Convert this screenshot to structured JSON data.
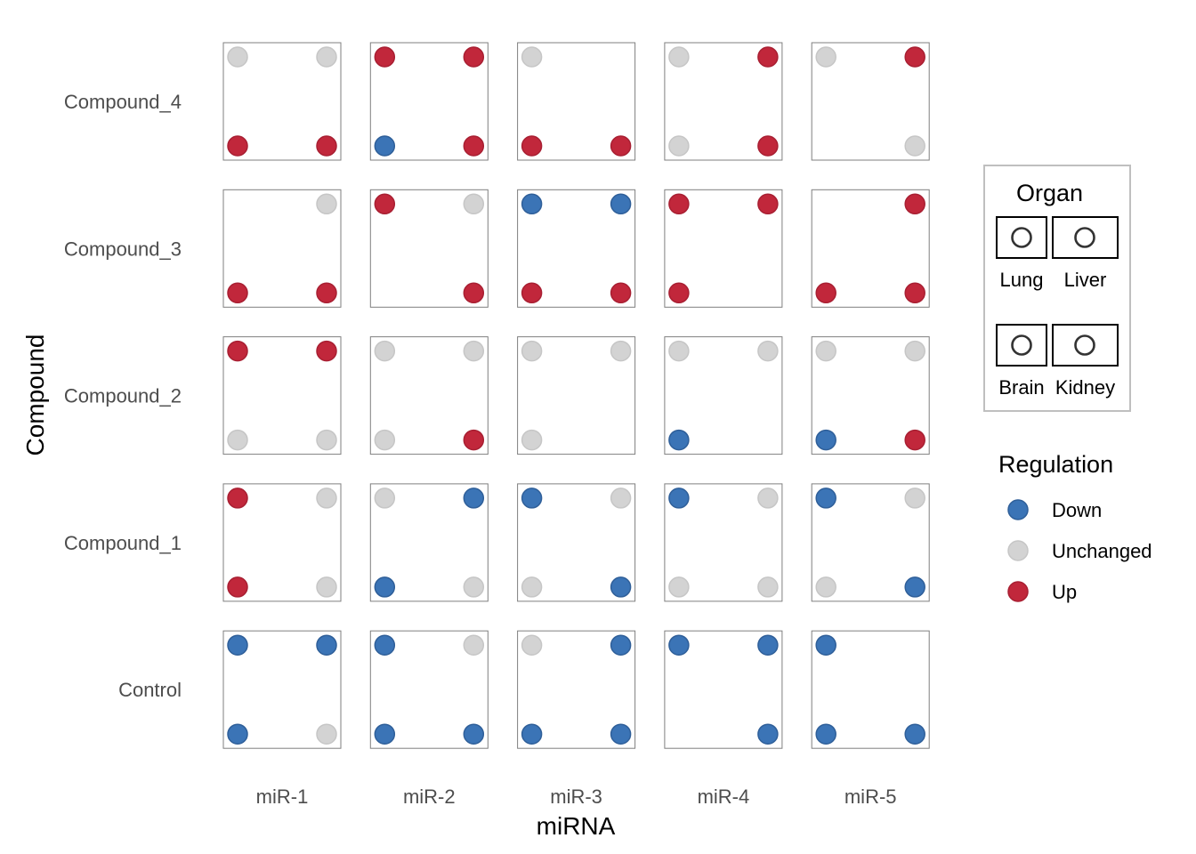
{
  "chart_data": {
    "type": "scatter",
    "xlabel": "miRNA",
    "ylabel": "Compound",
    "x_categories": [
      "miR-1",
      "miR-2",
      "miR-3",
      "miR-4",
      "miR-5"
    ],
    "y_categories": [
      "Control",
      "Compound_1",
      "Compound_2",
      "Compound_3",
      "Compound_4"
    ],
    "organ_legend": {
      "title": "Organ",
      "positions": [
        {
          "organ": "Lung",
          "corner": "top-left"
        },
        {
          "organ": "Liver",
          "corner": "top-right"
        },
        {
          "organ": "Brain",
          "corner": "bottom-left"
        },
        {
          "organ": "Kidney",
          "corner": "bottom-right"
        }
      ]
    },
    "regulation_legend": {
      "title": "Regulation",
      "entries": [
        {
          "label": "Down",
          "color": "#3b74b6"
        },
        {
          "label": "Unchanged",
          "color": "#d3d3d3"
        },
        {
          "label": "Up",
          "color": "#c1273b"
        }
      ]
    },
    "grid": false,
    "cells": [
      {
        "compound": "Compound_4",
        "mirna": "miR-1",
        "Lung": "Unchanged",
        "Liver": "Unchanged",
        "Brain": "Up",
        "Kidney": "Up"
      },
      {
        "compound": "Compound_4",
        "mirna": "miR-2",
        "Lung": "Up",
        "Liver": "Up",
        "Brain": "Down",
        "Kidney": "Up"
      },
      {
        "compound": "Compound_4",
        "mirna": "miR-3",
        "Lung": "Unchanged",
        "Liver": null,
        "Brain": "Up",
        "Kidney": "Up"
      },
      {
        "compound": "Compound_4",
        "mirna": "miR-4",
        "Lung": "Unchanged",
        "Liver": "Up",
        "Brain": "Unchanged",
        "Kidney": "Up"
      },
      {
        "compound": "Compound_4",
        "mirna": "miR-5",
        "Lung": "Unchanged",
        "Liver": "Up",
        "Brain": null,
        "Kidney": "Unchanged"
      },
      {
        "compound": "Compound_3",
        "mirna": "miR-1",
        "Lung": null,
        "Liver": "Unchanged",
        "Brain": "Up",
        "Kidney": "Up"
      },
      {
        "compound": "Compound_3",
        "mirna": "miR-2",
        "Lung": "Up",
        "Liver": "Unchanged",
        "Brain": null,
        "Kidney": "Up"
      },
      {
        "compound": "Compound_3",
        "mirna": "miR-3",
        "Lung": "Down",
        "Liver": "Down",
        "Brain": "Up",
        "Kidney": "Up"
      },
      {
        "compound": "Compound_3",
        "mirna": "miR-4",
        "Lung": "Up",
        "Liver": "Up",
        "Brain": "Up",
        "Kidney": null
      },
      {
        "compound": "Compound_3",
        "mirna": "miR-5",
        "Lung": null,
        "Liver": "Up",
        "Brain": "Up",
        "Kidney": "Up"
      },
      {
        "compound": "Compound_2",
        "mirna": "miR-1",
        "Lung": "Up",
        "Liver": "Up",
        "Brain": "Unchanged",
        "Kidney": "Unchanged"
      },
      {
        "compound": "Compound_2",
        "mirna": "miR-2",
        "Lung": "Unchanged",
        "Liver": "Unchanged",
        "Brain": "Unchanged",
        "Kidney": "Up"
      },
      {
        "compound": "Compound_2",
        "mirna": "miR-3",
        "Lung": "Unchanged",
        "Liver": "Unchanged",
        "Brain": "Unchanged",
        "Kidney": null
      },
      {
        "compound": "Compound_2",
        "mirna": "miR-4",
        "Lung": "Unchanged",
        "Liver": "Unchanged",
        "Brain": "Down",
        "Kidney": null
      },
      {
        "compound": "Compound_2",
        "mirna": "miR-5",
        "Lung": "Unchanged",
        "Liver": "Unchanged",
        "Brain": "Down",
        "Kidney": "Up"
      },
      {
        "compound": "Compound_1",
        "mirna": "miR-1",
        "Lung": "Up",
        "Liver": "Unchanged",
        "Brain": "Up",
        "Kidney": "Unchanged"
      },
      {
        "compound": "Compound_1",
        "mirna": "miR-2",
        "Lung": "Unchanged",
        "Liver": "Down",
        "Brain": "Down",
        "Kidney": "Unchanged"
      },
      {
        "compound": "Compound_1",
        "mirna": "miR-3",
        "Lung": "Down",
        "Liver": "Unchanged",
        "Brain": "Unchanged",
        "Kidney": "Down"
      },
      {
        "compound": "Compound_1",
        "mirna": "miR-4",
        "Lung": "Down",
        "Liver": "Unchanged",
        "Brain": "Unchanged",
        "Kidney": "Unchanged"
      },
      {
        "compound": "Compound_1",
        "mirna": "miR-5",
        "Lung": "Down",
        "Liver": "Unchanged",
        "Brain": "Unchanged",
        "Kidney": "Down"
      },
      {
        "compound": "Control",
        "mirna": "miR-1",
        "Lung": "Down",
        "Liver": "Down",
        "Brain": "Down",
        "Kidney": "Unchanged"
      },
      {
        "compound": "Control",
        "mirna": "miR-2",
        "Lung": "Down",
        "Liver": "Unchanged",
        "Brain": "Down",
        "Kidney": "Down"
      },
      {
        "compound": "Control",
        "mirna": "miR-3",
        "Lung": "Unchanged",
        "Liver": "Down",
        "Brain": "Down",
        "Kidney": "Down"
      },
      {
        "compound": "Control",
        "mirna": "miR-4",
        "Lung": "Down",
        "Liver": "Down",
        "Brain": null,
        "Kidney": "Down"
      },
      {
        "compound": "Control",
        "mirna": "miR-5",
        "Lung": "Down",
        "Liver": null,
        "Brain": "Down",
        "Kidney": "Down"
      }
    ]
  }
}
